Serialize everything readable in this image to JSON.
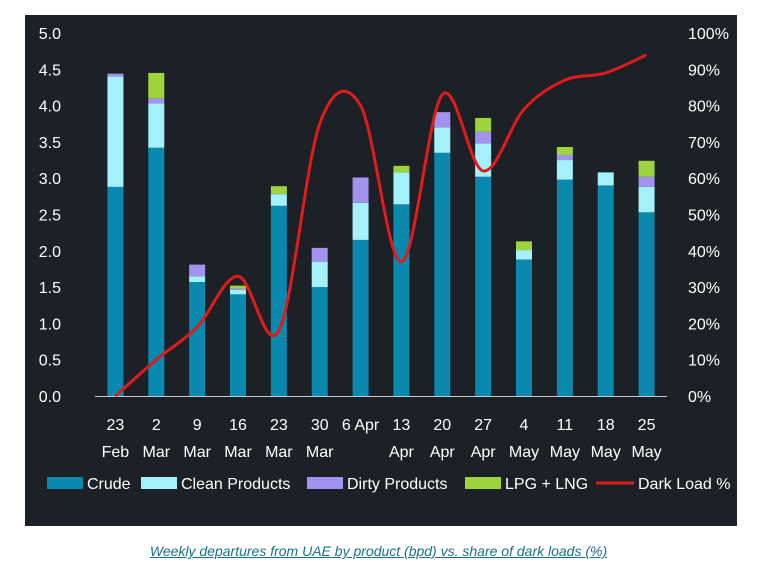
{
  "colors": {
    "panel_bg": "#1c2127",
    "crude": "#0a88ad",
    "clean": "#a4f1fb",
    "dirty": "#a193ef",
    "lpg": "#9dd33d",
    "dark_load": "#e01b1b",
    "caption": "#1a6f8c"
  },
  "caption": "Weekly departures from UAE by product (bpd) vs. share of dark loads (%)",
  "chart_data": {
    "type": "bar",
    "stacked": true,
    "title": "",
    "xlabel": "",
    "ylabel": "",
    "ylim": [
      0,
      5
    ],
    "y_ticks": [
      "0.0",
      "0.5",
      "1.0",
      "1.5",
      "2.0",
      "2.5",
      "3.0",
      "3.5",
      "4.0",
      "4.5",
      "5.0"
    ],
    "y2lim": [
      0,
      100
    ],
    "y2_ticks": [
      "0%",
      "10%",
      "20%",
      "30%",
      "40%",
      "50%",
      "60%",
      "70%",
      "80%",
      "90%",
      "100%"
    ],
    "grid": false,
    "legend_position": "bottom",
    "categories": [
      [
        "23",
        "Feb"
      ],
      [
        "2",
        "Mar"
      ],
      [
        "9",
        "Mar"
      ],
      [
        "16",
        "Mar"
      ],
      [
        "23",
        "Mar"
      ],
      [
        "30",
        "Mar"
      ],
      [
        "6 Apr",
        ""
      ],
      [
        "13",
        "Apr"
      ],
      [
        "20",
        "Apr"
      ],
      [
        "27",
        "Apr"
      ],
      [
        "4",
        "May"
      ],
      [
        "11",
        "May"
      ],
      [
        "18",
        "May"
      ],
      [
        "25",
        "May"
      ]
    ],
    "series": [
      {
        "name": "Crude",
        "color": "#0a88ad",
        "values": [
          2.88,
          3.42,
          1.57,
          1.4,
          2.62,
          1.5,
          2.15,
          2.64,
          3.35,
          3.02,
          1.88,
          2.98,
          2.9,
          2.53
        ]
      },
      {
        "name": "Clean Products",
        "color": "#a4f1fb",
        "values": [
          1.52,
          0.61,
          0.08,
          0.06,
          0.16,
          0.35,
          0.51,
          0.44,
          0.35,
          0.46,
          0.13,
          0.27,
          0.18,
          0.35
        ]
      },
      {
        "name": "Dirty Products",
        "color": "#a193ef",
        "values": [
          0.04,
          0.07,
          0.16,
          0.02,
          0.0,
          0.19,
          0.35,
          0.0,
          0.21,
          0.16,
          0.0,
          0.07,
          0.0,
          0.14
        ]
      },
      {
        "name": "LPG + LNG",
        "color": "#9dd33d",
        "values": [
          0.0,
          0.35,
          0.0,
          0.04,
          0.11,
          0.0,
          0.0,
          0.09,
          0.0,
          0.19,
          0.12,
          0.11,
          0.0,
          0.22
        ]
      }
    ],
    "line_series": {
      "name": "Dark Load %",
      "color": "#e01b1b",
      "axis": "right",
      "values": [
        0,
        10,
        19,
        33,
        18,
        75,
        80,
        37,
        83,
        62,
        79,
        87,
        89,
        94
      ]
    }
  }
}
